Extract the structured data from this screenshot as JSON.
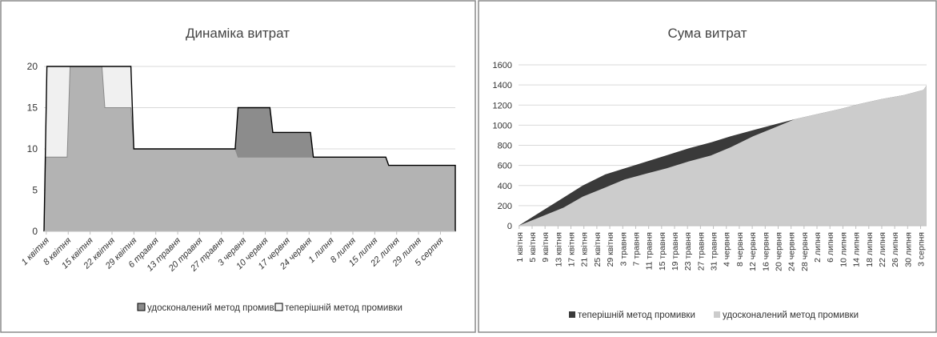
{
  "colors": {
    "current_fill": "#f0f0f0",
    "improved_fill": "#b3b3b3",
    "overlap_fill": "#8c8c8c",
    "line": "#000000",
    "cum_current": "#3a3a3a",
    "cum_improved": "#cccccc",
    "grid": "#d9d9d9",
    "axis_text": "#333333"
  },
  "chart_data": [
    {
      "type": "area",
      "title": "Динаміка витрат",
      "ylim": [
        0,
        20
      ],
      "yticks": [
        "0",
        "5",
        "10",
        "15",
        "20"
      ],
      "grid": true,
      "legend_position": "bottom",
      "legend": [
        "удосконалений метод промивки",
        "теперішній метод промивки"
      ],
      "x_labels": [
        "1 квітня",
        "8 квітня",
        "15 квітня",
        "22 квітня",
        "29 квітня",
        "6 травня",
        "13 травня",
        "20 травня",
        "27 травня",
        "3 червня",
        "10 червня",
        "17 червня",
        "24 червня",
        "1 липня",
        "8 липня",
        "15 липня",
        "22 липня",
        "29 липня",
        "5 серпня"
      ],
      "series": [
        {
          "name": "удосконалений метод промивки",
          "points": [
            [
              0,
              0
            ],
            [
              0.3,
              9
            ],
            [
              4,
              9
            ],
            [
              4.5,
              20
            ],
            [
              10,
              20
            ],
            [
              10.5,
              15
            ],
            [
              15,
              15
            ],
            [
              15.5,
              10
            ],
            [
              33,
              10
            ],
            [
              33.5,
              9
            ],
            [
              59,
              9
            ],
            [
              59.5,
              8
            ],
            [
              71,
              8
            ]
          ]
        },
        {
          "name": "теперішній метод промивки",
          "points": [
            [
              0,
              0
            ],
            [
              0.5,
              20
            ],
            [
              15,
              20
            ],
            [
              15.5,
              10
            ],
            [
              33,
              10
            ],
            [
              33.5,
              15
            ],
            [
              39,
              15
            ],
            [
              39.5,
              12
            ],
            [
              46,
              12
            ],
            [
              46.5,
              9
            ],
            [
              59,
              9
            ],
            [
              59.5,
              8
            ],
            [
              71,
              8
            ]
          ]
        }
      ]
    },
    {
      "type": "area",
      "title": "Сума витрат",
      "ylim": [
        0,
        1600
      ],
      "yticks": [
        "0",
        "200",
        "400",
        "600",
        "800",
        "1000",
        "1200",
        "1400",
        "1600"
      ],
      "grid": true,
      "legend_position": "bottom",
      "legend": [
        "теперішній метод промивки",
        "удосконалений метод промивки"
      ],
      "x_labels": [
        "1 квітня",
        "5 квітня",
        "9 квітня",
        "13 квітня",
        "17 квітня",
        "21 квітня",
        "25 квітня",
        "29 квітня",
        "3 травня",
        "7 травня",
        "11 травня",
        "15 травня",
        "19 травня",
        "23 травня",
        "27 травня",
        "31 травня",
        "4 червня",
        "8 червня",
        "12 червня",
        "16 червня",
        "20 червня",
        "24 червня",
        "28 червня",
        "2 липня",
        "6 липня",
        "10 липня",
        "14 липня",
        "18 липня",
        "22 липня",
        "26 липня",
        "30 липня",
        "3 серпня"
      ],
      "series": [
        {
          "name": "теперішній метод промивки",
          "points": [
            [
              0,
              0
            ],
            [
              7,
              140
            ],
            [
              14,
              280
            ],
            [
              20,
              400
            ],
            [
              27,
              510
            ],
            [
              33,
              570
            ],
            [
              40,
              640
            ],
            [
              46,
              700
            ],
            [
              53,
              770
            ],
            [
              60,
              830
            ],
            [
              66,
              890
            ],
            [
              73,
              950
            ],
            [
              80,
              1010
            ],
            [
              86,
              1060
            ],
            [
              93,
              1110
            ],
            [
              100,
              1160
            ],
            [
              106,
              1210
            ],
            [
              113,
              1260
            ],
            [
              120,
              1300
            ],
            [
              126,
              1350
            ],
            [
              127,
              1395
            ]
          ]
        },
        {
          "name": "удосконалений метод промивки",
          "points": [
            [
              0,
              0
            ],
            [
              7,
              90
            ],
            [
              14,
              180
            ],
            [
              20,
              290
            ],
            [
              27,
              380
            ],
            [
              33,
              460
            ],
            [
              40,
              520
            ],
            [
              46,
              570
            ],
            [
              53,
              640
            ],
            [
              60,
              700
            ],
            [
              66,
              780
            ],
            [
              73,
              890
            ],
            [
              80,
              980
            ],
            [
              86,
              1060
            ],
            [
              93,
              1110
            ],
            [
              100,
              1160
            ],
            [
              106,
              1210
            ],
            [
              113,
              1260
            ],
            [
              120,
              1300
            ],
            [
              126,
              1350
            ],
            [
              127,
              1395
            ]
          ]
        }
      ]
    }
  ]
}
